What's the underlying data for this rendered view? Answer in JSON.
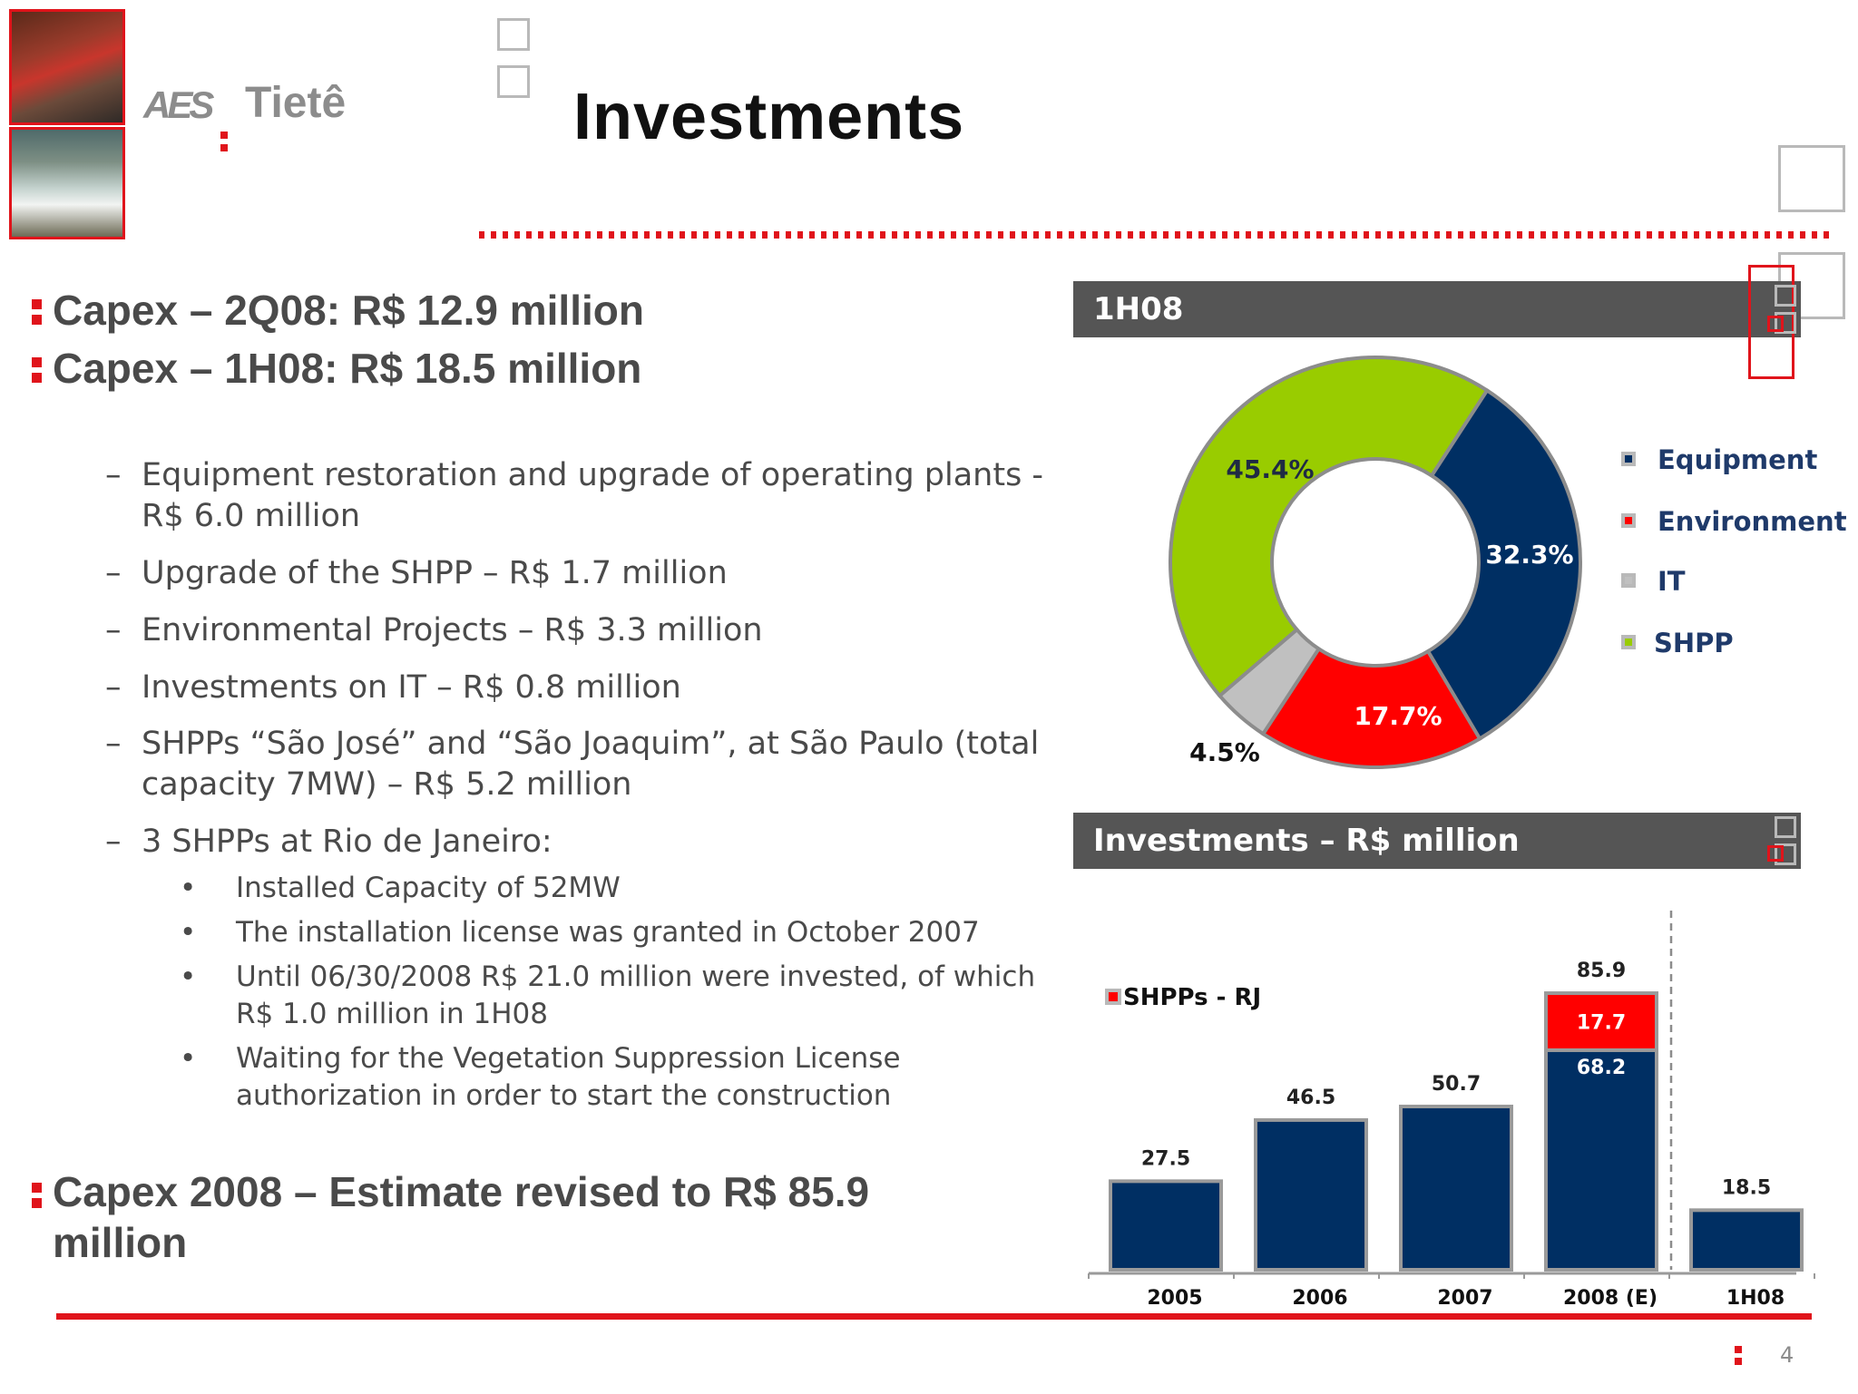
{
  "header": {
    "logo_aes": "AES",
    "logo_tiete": "Tietê",
    "title": "Investments"
  },
  "bullets": {
    "capex_2q": "Capex – 2Q08: R$ 12.9 million",
    "capex_1h": "Capex – 1H08: R$ 18.5 million",
    "items": [
      "Equipment restoration and upgrade of operating plants - R$ 6.0 million",
      "Upgrade of the SHPP – R$ 1.7 million",
      "Environmental  Projects – R$ 3.3 million",
      "Investments on IT – R$ 0.8 million",
      "SHPPs “São José” and “São Joaquim”, at São Paulo (total capacity 7MW) – R$ 5.2 million",
      "3 SHPPs at Rio de Janeiro:"
    ],
    "subitems": [
      "Installed Capacity of 52MW",
      "The installation license was granted in October 2007",
      "Until 06/30/2008 R$ 21.0 million were invested, of which R$ 1.0 million in 1H08",
      "Waiting for the Vegetation Suppression License authorization in order to start the construction"
    ],
    "capex_2008": "Capex 2008 – Estimate revised to R$ 85.9 million",
    "dash": "–",
    "dot": "•"
  },
  "footer": {
    "page_number": "4"
  },
  "colors": {
    "navy": "#002f63",
    "red": "#ff0000",
    "gray": "#c0c0c0",
    "green": "#99cc00",
    "accent": "#e0141b"
  },
  "chart_data": [
    {
      "type": "pie",
      "title": "1H08",
      "series": [
        {
          "name": "Equipment",
          "value": 32.3,
          "label": "32.3%",
          "color": "#002f63"
        },
        {
          "name": "Environment",
          "value": 17.7,
          "label": "17.7%",
          "color": "#ff0000"
        },
        {
          "name": "IT",
          "value": 4.5,
          "label": "4.5%",
          "color": "#c0c0c0"
        },
        {
          "name": "SHPP",
          "value": 45.4,
          "label": "45.4%",
          "color": "#99cc00"
        }
      ],
      "legend_position": "right"
    },
    {
      "type": "bar",
      "title": "Investments – R$ million",
      "categories": [
        "2005",
        "2006",
        "2007",
        "2008 (E)",
        "1H08"
      ],
      "series": [
        {
          "name": "",
          "values": [
            27.5,
            46.5,
            50.7,
            68.2,
            18.5
          ],
          "color": "#002f63"
        },
        {
          "name": "SHPPs - RJ",
          "values": [
            0,
            0,
            0,
            17.7,
            0
          ],
          "color": "#ff0000"
        }
      ],
      "totals": [
        "27.5",
        "46.5",
        "50.7",
        "85.9",
        "18.5"
      ],
      "segment_labels": {
        "base_2008": "68.2",
        "top_2008": "17.7"
      },
      "legend": "SHPPs - RJ",
      "ylim": [
        0,
        100
      ],
      "grid": false
    }
  ]
}
